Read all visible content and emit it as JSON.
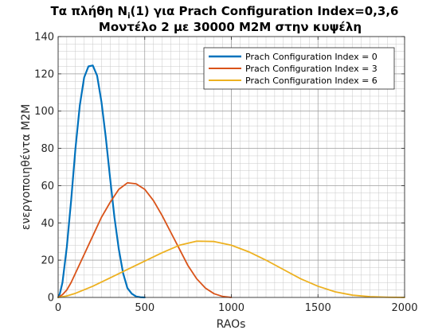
{
  "chart_data": {
    "type": "line",
    "title_line1": "Τα πλήθη N",
    "title_sub": "i",
    "title_line1_rest": "(1) για Prach Configuration Index=0,3,6",
    "title_line2": "Μοντέλο 2 με 30000 M2M στην κυψέλη",
    "xlabel": "RAOs",
    "ylabel": "ενεργοποιηθέντα M2M",
    "xlim": [
      0,
      2000
    ],
    "ylim": [
      0,
      140
    ],
    "xticks": [
      "0",
      "500",
      "1000",
      "1500",
      "2000"
    ],
    "yticks": [
      "0",
      "20",
      "40",
      "60",
      "80",
      "100",
      "120",
      "140"
    ],
    "grid": true,
    "legend_position": "top-right",
    "series": [
      {
        "name": "Prach Configuration Index = 0",
        "color": "#0072bd",
        "x": [
          0,
          10,
          25,
          50,
          75,
          100,
          125,
          150,
          175,
          200,
          225,
          250,
          275,
          300,
          325,
          350,
          375,
          400,
          425,
          450,
          475,
          500
        ],
        "values": [
          0,
          2,
          8,
          27,
          52,
          80,
          103,
          118,
          124,
          124.5,
          119,
          105,
          86,
          64,
          43,
          26,
          13,
          5,
          2,
          0.5,
          0.1,
          0
        ]
      },
      {
        "name": "Prach Configuration Index = 3",
        "color": "#d95319",
        "x": [
          0,
          25,
          50,
          75,
          100,
          150,
          200,
          250,
          300,
          350,
          400,
          450,
          500,
          550,
          600,
          650,
          700,
          750,
          800,
          850,
          900,
          950,
          1000
        ],
        "values": [
          0,
          1.5,
          4,
          8,
          13,
          23,
          33,
          43,
          51,
          58,
          61.5,
          61,
          58,
          52,
          44,
          35,
          26,
          17,
          10,
          5,
          2,
          0.5,
          0
        ]
      },
      {
        "name": "Prach Configuration Index = 6",
        "color": "#edb120",
        "x": [
          0,
          50,
          100,
          200,
          300,
          400,
          500,
          600,
          700,
          800,
          900,
          1000,
          1100,
          1200,
          1300,
          1400,
          1500,
          1600,
          1700,
          1800,
          1900,
          2000
        ],
        "values": [
          0,
          0.8,
          2.2,
          6,
          10.5,
          15,
          19.5,
          24,
          28,
          30.2,
          30,
          28,
          24.5,
          20,
          15,
          10,
          6,
          3,
          1.2,
          0.4,
          0.1,
          0
        ]
      }
    ]
  }
}
